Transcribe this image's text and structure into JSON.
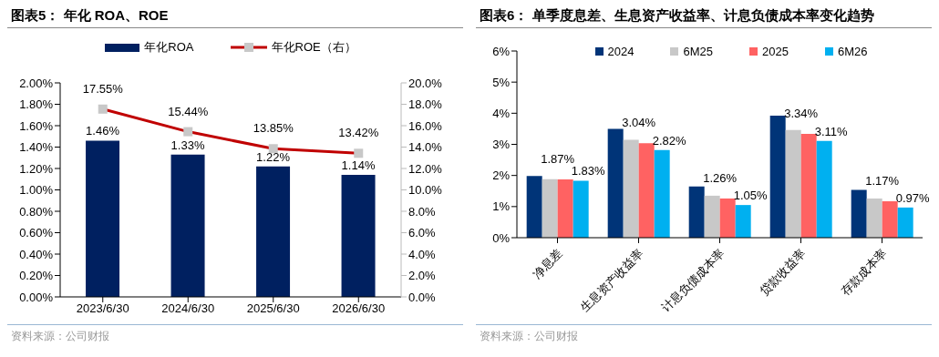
{
  "chart_data": [
    {
      "type": "bar",
      "title": "图表5：  年化 ROA、ROE",
      "categories": [
        "2023/6/30",
        "2024/6/30",
        "2025/6/30",
        "2026/6/30"
      ],
      "series": [
        {
          "name": "年化ROA",
          "color": "#002060",
          "values": [
            1.46,
            1.33,
            1.22,
            1.14
          ],
          "value_labels": [
            "1.46%",
            "1.33%",
            "1.22%",
            "1.14%"
          ]
        },
        {
          "name": "年化ROE（右）",
          "type": "line",
          "axis": "y2",
          "color": "#c00000",
          "values": [
            17.55,
            15.44,
            13.85,
            13.42
          ],
          "value_labels": [
            "17.55%",
            "15.44%",
            "13.85%",
            "13.42%"
          ]
        }
      ],
      "ylim": [
        0,
        2
      ],
      "yticks": [
        {
          "value": 0,
          "label": "0.00%"
        },
        {
          "value": 0.2,
          "label": "0.20%"
        },
        {
          "value": 0.4,
          "label": "0.40%"
        },
        {
          "value": 0.6,
          "label": "0.60%"
        },
        {
          "value": 0.8,
          "label": "0.80%"
        },
        {
          "value": 1,
          "label": "1.00%"
        },
        {
          "value": 1.2,
          "label": "1.20%"
        },
        {
          "value": 1.4,
          "label": "1.40%"
        },
        {
          "value": 1.6,
          "label": "1.60%"
        },
        {
          "value": 1.8,
          "label": "1.80%"
        },
        {
          "value": 2,
          "label": "2.00%"
        }
      ],
      "y2lim": [
        0,
        20
      ],
      "y2ticks": [
        {
          "value": 0,
          "label": "0.0%"
        },
        {
          "value": 2,
          "label": "2.0%"
        },
        {
          "value": 4,
          "label": "4.0%"
        },
        {
          "value": 6,
          "label": "6.0%"
        },
        {
          "value": 8,
          "label": "8.0%"
        },
        {
          "value": 10,
          "label": "10.0%"
        },
        {
          "value": 12,
          "label": "12.0%"
        },
        {
          "value": 14,
          "label": "14.0%"
        },
        {
          "value": 16,
          "label": "16.0%"
        },
        {
          "value": 18,
          "label": "18.0%"
        },
        {
          "value": 20,
          "label": "20.0%"
        }
      ],
      "marker": "square",
      "grid": false,
      "legend": "top",
      "annotations": [
        "资料来源：公司财报"
      ]
    },
    {
      "type": "bar",
      "title": "图表6：  单季度息差、生息资产收益率、计息负债成本率变化趋势",
      "categories": [
        "净息差",
        "生息资产收益率",
        "计息负债成本率",
        "贷款收益率",
        "存款成本率"
      ],
      "series": [
        {
          "name": "2024",
          "color": "#003478",
          "values": [
            1.98,
            3.5,
            1.65,
            3.92,
            1.54
          ]
        },
        {
          "name": "6M25",
          "color": "#c8c8c8",
          "values": [
            1.88,
            3.15,
            1.35,
            3.46,
            1.26
          ]
        },
        {
          "name": "2025",
          "color": "#ff6262",
          "values": [
            1.87,
            3.04,
            1.26,
            3.34,
            1.17
          ],
          "value_labels": [
            "1.87%",
            "3.04%",
            "1.26%",
            "3.34%",
            "1.17%"
          ]
        },
        {
          "name": "6M26",
          "color": "#00b0f0",
          "values": [
            1.83,
            2.82,
            1.05,
            3.11,
            0.97
          ],
          "value_labels": [
            "1.83%",
            "2.82%",
            "1.05%",
            "3.11%",
            "0.97%"
          ]
        }
      ],
      "ylim": [
        0,
        6
      ],
      "yticks": [
        {
          "value": 0,
          "label": "0%"
        },
        {
          "value": 1,
          "label": "1%"
        },
        {
          "value": 2,
          "label": "2%"
        },
        {
          "value": 3,
          "label": "3%"
        },
        {
          "value": 4,
          "label": "4%"
        },
        {
          "value": 5,
          "label": "5%"
        },
        {
          "value": 6,
          "label": "6%"
        }
      ],
      "grid": false,
      "legend": "top",
      "annotations": [
        "资料来源：公司财报"
      ]
    }
  ]
}
